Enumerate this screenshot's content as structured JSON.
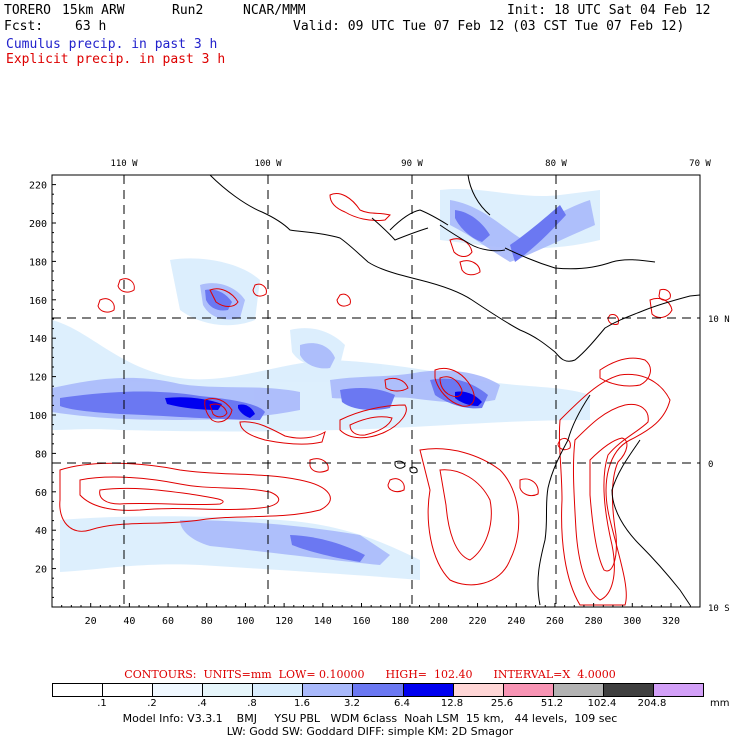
{
  "header": {
    "model": "TORERO",
    "resolution": "15km ARW",
    "run": "Run2",
    "org": "NCAR/MMM",
    "init": "Init: 18 UTC Sat 04 Feb 12",
    "fcst_label": "Fcst:",
    "fcst_value": "63 h",
    "valid": "Valid: 09 UTC Tue 07 Feb 12 (03 CST Tue 07 Feb 12)",
    "field1": "Cumulus precip. in past 3 h",
    "field2": "Explicit precip. in past 3 h"
  },
  "map": {
    "top_lon_labels": [
      "110 W",
      "100 W",
      "90 W",
      "80 W",
      "70 W"
    ],
    "right_lat_labels": [
      "10 N",
      "0",
      "10 S"
    ],
    "y_ticks": [
      "220",
      "200",
      "180",
      "160",
      "140",
      "120",
      "100",
      "80",
      "60",
      "40",
      "20"
    ],
    "x_ticks": [
      "20",
      "40",
      "60",
      "80",
      "100",
      "120",
      "140",
      "160",
      "180",
      "200",
      "220",
      "240",
      "260",
      "280",
      "300",
      "320"
    ],
    "x_range": [
      0,
      335
    ],
    "y_range": [
      0,
      225
    ]
  },
  "contours": {
    "text": "CONTOURS:  UNITS=mm  LOW= 0.10000      HIGH=  102.40      INTERVAL=X  4.0000"
  },
  "legend": {
    "levels": [
      ".1",
      ".2",
      ".4",
      ".8",
      "1.6",
      "3.2",
      "6.4",
      "12.8",
      "25.6",
      "51.2",
      "102.4",
      "204.8"
    ],
    "unit": "mm",
    "colors": [
      "#ffffff",
      "#ffffff",
      "#f0f8ff",
      "#e6f5fa",
      "#d9edfd",
      "#a9b9fb",
      "#6b78f2",
      "#0000f0",
      "#ffd6d6",
      "#f894b4",
      "#b3b3b3",
      "#404040",
      "#d3a0f8"
    ]
  },
  "footer": {
    "line1": "Model Info: V3.3.1    BMJ     YSU PBL   WDM 6class  Noah LSM  15 km,   44 levels,  109 sec",
    "line2": "LW: Godd SW: Goddard DIFF: simple KM: 2D Smagor"
  }
}
